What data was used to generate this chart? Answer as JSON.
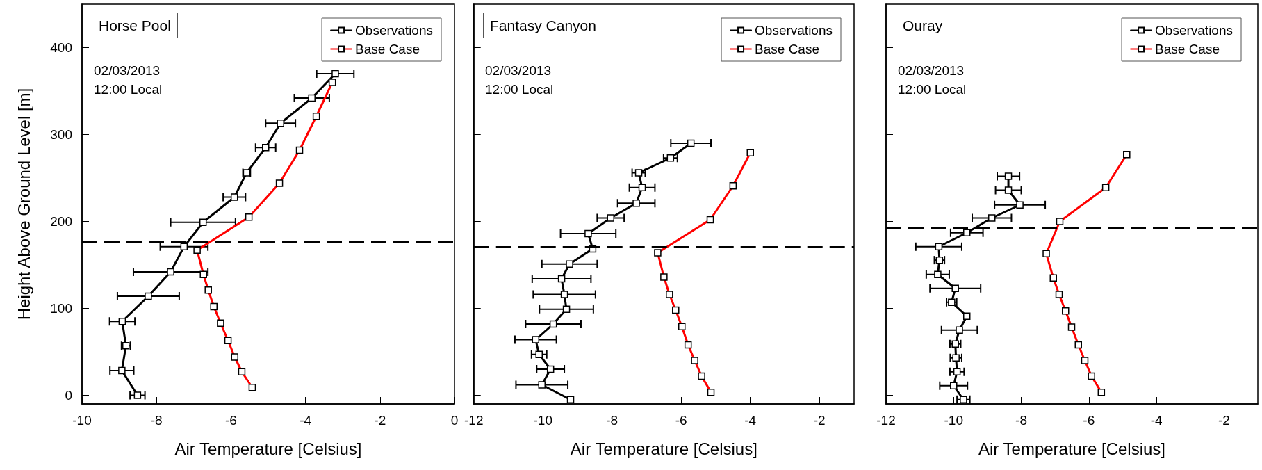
{
  "chart_data": [
    {
      "type": "line",
      "title": "Horse Pool",
      "xlabel": "Air Temperature [Celsius]",
      "ylabel": "Height Above Ground Level [m]",
      "annotations": [
        "02/03/2013",
        "12:00 Local"
      ],
      "xlim": [
        -10,
        0
      ],
      "xticks": [
        -10,
        -8,
        -6,
        -4,
        -2,
        0
      ],
      "ylim": [
        -10,
        450
      ],
      "yticks": [
        0,
        100,
        200,
        300,
        400
      ],
      "grid": false,
      "legend": "top right",
      "marker": "square",
      "line_style": "solid",
      "ref_lines": [
        {
          "axis": "y",
          "value": 176,
          "label": null,
          "color": "#000000",
          "line_style": "dashed"
        }
      ],
      "series": [
        {
          "name": "Observations",
          "color": "#000000",
          "x": [
            -3.2,
            -3.83,
            -4.67,
            -5.07,
            -5.58,
            -5.91,
            -6.75,
            -7.26,
            -7.62,
            -8.22,
            -8.92,
            -8.82,
            -8.93,
            -8.51
          ],
          "values": [
            370,
            342,
            313,
            285,
            256,
            228,
            199,
            171,
            142,
            114,
            85,
            57,
            28.5,
            0
          ],
          "xerrors": [
            0.5,
            0.47,
            0.4,
            0.27,
            0.1,
            0.3,
            0.87,
            0.64,
            1.0,
            0.83,
            0.34,
            0.12,
            0.32,
            0.2
          ]
        },
        {
          "name": "Base Case",
          "color": "#ff0000",
          "x": [
            -3.28,
            -3.71,
            -4.16,
            -4.7,
            -5.52,
            -6.91,
            -6.74,
            -6.61,
            -6.46,
            -6.28,
            -6.08,
            -5.9,
            -5.71,
            -5.43
          ],
          "values": [
            360,
            321,
            282,
            244,
            205,
            167,
            139,
            121,
            102,
            83,
            63,
            44,
            27,
            9
          ]
        }
      ]
    },
    {
      "type": "line",
      "title": "Fantasy Canyon",
      "xlabel": "Air Temperature [Celsius]",
      "annotations": [
        "02/03/2013",
        "12:00 Local"
      ],
      "xlim": [
        -12,
        -1
      ],
      "xticks": [
        -12,
        -10,
        -8,
        -6,
        -4,
        -2
      ],
      "ylim": [
        -10,
        450
      ],
      "yticks": [
        0,
        100,
        200,
        300,
        400
      ],
      "tick_labels": "x",
      "grid": false,
      "legend": "top right",
      "marker": "square",
      "line_style": "solid",
      "ref_lines": [
        {
          "axis": "y",
          "value": 171,
          "label": null,
          "color": "#000000",
          "line_style": "dashed"
        }
      ],
      "series": [
        {
          "name": "Observations",
          "color": "#000000",
          "x": [
            -5.72,
            -6.31,
            -7.23,
            -7.13,
            -7.3,
            -8.04,
            -8.69,
            -8.56,
            -9.23,
            -9.46,
            -9.38,
            -9.32,
            -9.7,
            -10.21,
            -10.11,
            -9.78,
            -10.03,
            -9.2
          ],
          "values": [
            290,
            273,
            256,
            239,
            221,
            204,
            186,
            168.5,
            151,
            134,
            116,
            99,
            82,
            64,
            47,
            30,
            12,
            -5
          ],
          "xerrors": [
            0.58,
            0.2,
            0.19,
            0.37,
            0.54,
            0.39,
            0.8,
            null,
            0.8,
            0.85,
            0.9,
            0.78,
            0.8,
            0.6,
            0.22,
            0.4,
            0.75,
            null
          ]
        },
        {
          "name": "Base Case",
          "color": "#ff0000",
          "x": [
            -4.0,
            -4.5,
            -5.16,
            -6.68,
            -6.5,
            -6.34,
            -6.16,
            -5.98,
            -5.8,
            -5.61,
            -5.41,
            -5.14
          ],
          "values": [
            279,
            241,
            202,
            164,
            136,
            116,
            98,
            79,
            58,
            40,
            22,
            3.5
          ]
        }
      ]
    },
    {
      "type": "line",
      "title": "Ouray",
      "xlabel": "Air Temperature [Celsius]",
      "annotations": [
        "02/03/2013",
        "12:00 Local"
      ],
      "xlim": [
        -12,
        -1
      ],
      "xticks": [
        -12,
        -10,
        -8,
        -6,
        -4,
        -2
      ],
      "ylim": [
        -10,
        450
      ],
      "yticks": [
        0,
        100,
        200,
        300,
        400
      ],
      "tick_labels": "x",
      "grid": false,
      "legend": "top right",
      "marker": "square",
      "line_style": "solid",
      "ref_lines": [
        {
          "axis": "y",
          "value": 193,
          "label": null,
          "color": "#000000",
          "line_style": "dashed"
        }
      ],
      "series": [
        {
          "name": "Observations",
          "color": "#000000",
          "x": [
            -8.38,
            -8.38,
            -8.04,
            -8.87,
            -9.61,
            -10.44,
            -10.42,
            -10.47,
            -9.95,
            -10.06,
            -9.61,
            -9.83,
            -9.95,
            -9.93,
            -9.9,
            -10.0,
            -9.71
          ],
          "values": [
            252,
            236,
            219,
            204,
            187,
            171,
            155.5,
            139,
            123,
            107,
            91,
            75,
            59,
            43,
            27,
            11,
            -5
          ],
          "xerrors": [
            0.33,
            0.38,
            0.75,
            0.58,
            0.48,
            0.68,
            0.15,
            0.34,
            0.75,
            0.15,
            null,
            0.53,
            0.16,
            0.17,
            0.21,
            0.41,
            0.19
          ]
        },
        {
          "name": "Base Case",
          "color": "#ff0000",
          "x": [
            -4.88,
            -5.5,
            -6.86,
            -7.26,
            -7.05,
            -6.88,
            -6.69,
            -6.51,
            -6.31,
            -6.12,
            -5.92,
            -5.63
          ],
          "values": [
            277,
            239,
            200,
            163,
            135,
            116,
            97,
            78.5,
            58,
            40,
            22,
            3.5
          ]
        }
      ]
    }
  ]
}
